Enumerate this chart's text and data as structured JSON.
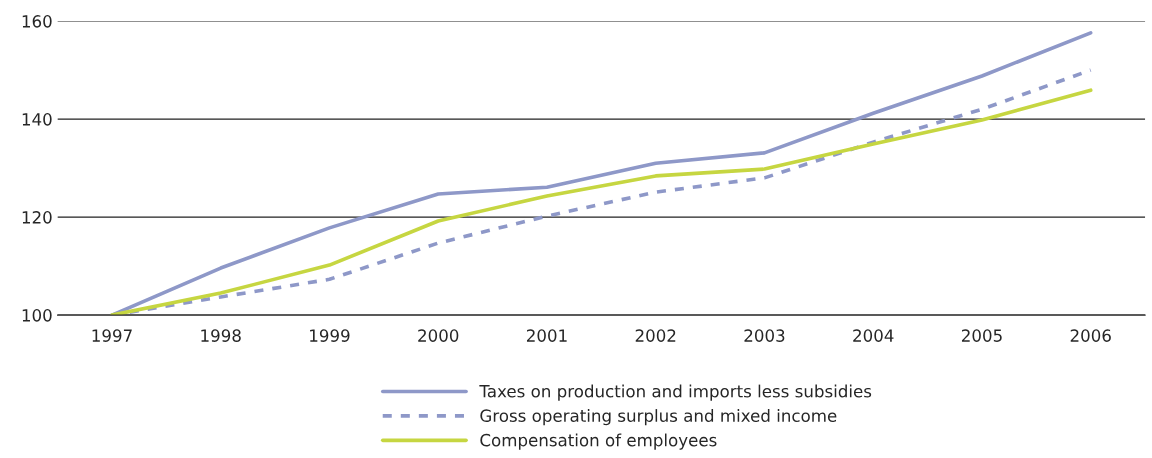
{
  "chart_data": {
    "type": "line",
    "categories": [
      "1997",
      "1998",
      "1999",
      "2000",
      "2001",
      "2002",
      "2003",
      "2004",
      "2005",
      "2006"
    ],
    "series": [
      {
        "name": "Taxes on production and imports less subsidies",
        "color": "#8e98c8",
        "line_style": "solid",
        "values": [
          100,
          109.6,
          117.8,
          124.7,
          126.1,
          131.0,
          133.1,
          141.2,
          148.8,
          157.6
        ]
      },
      {
        "name": "Gross operating surplus and mixed income",
        "color": "#8e98c8",
        "line_style": "dashed",
        "values": [
          100,
          103.7,
          107.3,
          114.7,
          120.2,
          125.1,
          128.0,
          135.3,
          142.0,
          150.0
        ]
      },
      {
        "name": "Compensation of employees",
        "color": "#c6d641",
        "line_style": "solid",
        "values": [
          100,
          104.5,
          110.2,
          119.2,
          124.3,
          128.4,
          129.8,
          134.9,
          139.8,
          145.9
        ]
      }
    ],
    "ylim": [
      100,
      160
    ],
    "yticks": [
      100,
      120,
      140,
      160
    ],
    "grid": "y",
    "legend": "bottom",
    "marker": "none"
  }
}
